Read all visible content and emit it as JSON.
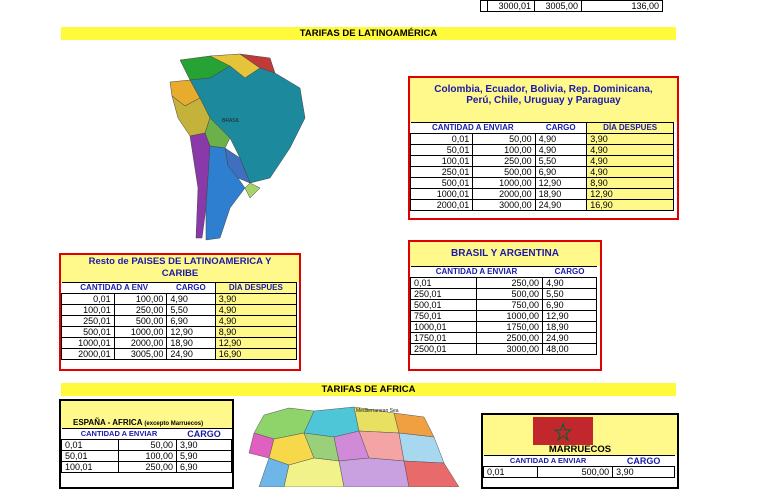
{
  "top_partial": [
    [
      "3000,01",
      "3005,00",
      "136,00"
    ]
  ],
  "latam": {
    "band": "TARIFAS DE LATINOAMÉRICA",
    "group1": {
      "title_line1": "Colombia, Ecuador, Bolivia, Rep. Dominicana,",
      "title_line2": "Perú, Chile, Uruguay y Paraguay",
      "headers": [
        "CANTIDAD A ENVIAR",
        "CARGO",
        "DÍA DESPUES"
      ],
      "rows": [
        [
          "0,01",
          "50,00",
          "4,90",
          "3,90"
        ],
        [
          "50,01",
          "100,00",
          "4,90",
          "4,90"
        ],
        [
          "100,01",
          "250,00",
          "5,50",
          "4,90"
        ],
        [
          "250,01",
          "500,00",
          "6,90",
          "4,90"
        ],
        [
          "500,01",
          "1000,00",
          "12,90",
          "8,90"
        ],
        [
          "1000,01",
          "2000,00",
          "18,90",
          "12,90"
        ],
        [
          "2000,01",
          "3000,00",
          "24,90",
          "16,90"
        ]
      ]
    },
    "group2": {
      "title_line1": "Resto de PAISES DE LATINOAMERICA Y",
      "title_line2": "CARIBE",
      "headers": [
        "CANTIDAD A ENV",
        "CARGO",
        "DÍA DESPUES"
      ],
      "rows": [
        [
          "0,01",
          "100,00",
          "4,90",
          "3,90"
        ],
        [
          "100,01",
          "250,00",
          "5,50",
          "4,90"
        ],
        [
          "250,01",
          "500,00",
          "6,90",
          "4,90"
        ],
        [
          "500,01",
          "1000,00",
          "12,90",
          "8,90"
        ],
        [
          "1000,01",
          "2000,00",
          "18,90",
          "12,90"
        ],
        [
          "2000,01",
          "3005,00",
          "24,90",
          "16,90"
        ]
      ]
    },
    "group3": {
      "title": "BRASIL Y ARGENTINA",
      "headers": [
        "CANTIDAD A ENVIAR",
        "CARGO"
      ],
      "rows": [
        [
          "0,01",
          "250,00",
          "4,90"
        ],
        [
          "250,01",
          "500,00",
          "5,50"
        ],
        [
          "500,01",
          "750,00",
          "6,90"
        ],
        [
          "750,01",
          "1000,00",
          "12,90"
        ],
        [
          "1000,01",
          "1750,00",
          "18,90"
        ],
        [
          "1750,01",
          "2500,00",
          "24,90"
        ],
        [
          "2500,01",
          "3000,00",
          "48,00"
        ]
      ]
    },
    "map_label": "BRASIL"
  },
  "africa": {
    "band": "TARIFAS DE AFRICA",
    "group1": {
      "title": "ESPAÑA - AFRICA",
      "title_note": "(excepto Marruecos)",
      "headers": [
        "CANTIDAD A ENVIAR",
        "CARGO"
      ],
      "rows": [
        [
          "0,01",
          "50,00",
          "3,90"
        ],
        [
          "50,01",
          "100,00",
          "5,90"
        ],
        [
          "100,01",
          "250,00",
          "6,90"
        ]
      ]
    },
    "group2": {
      "title": "MARRUECOS",
      "headers": [
        "CANTIDAD A ENVIAR",
        "CARGO"
      ],
      "rows": [
        [
          "0,01",
          "500,00",
          "3,90"
        ]
      ]
    },
    "map_label": "Mediterranean Sea"
  },
  "colors": {
    "band": "#fffa3c",
    "highlight": "#fff88a",
    "header_text": "#1a1aa8",
    "red_border": "#e00000"
  }
}
